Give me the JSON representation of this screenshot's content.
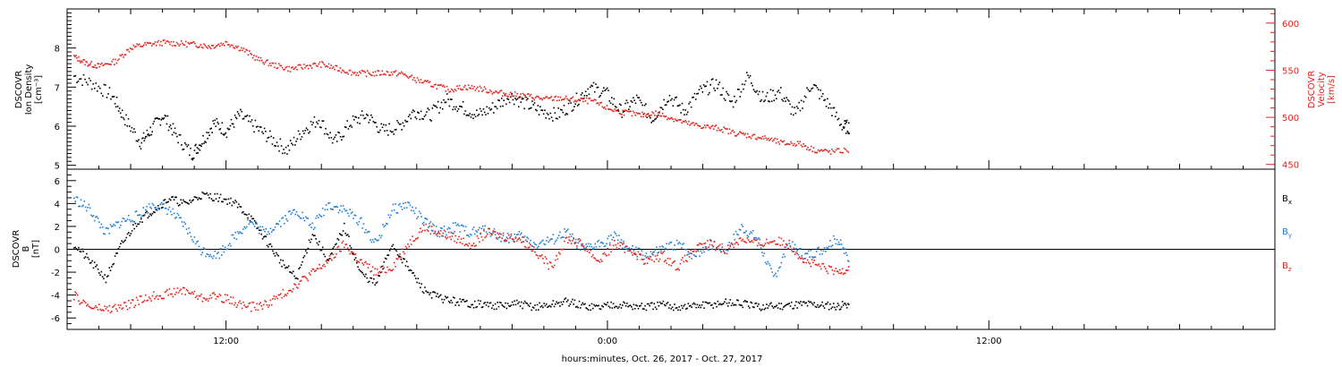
{
  "chart_data": [
    {
      "type": "scatter",
      "title": "",
      "xlabel": "hours:minutes, Oct. 26, 2017 - Oct. 27, 2017",
      "ylabel": "DSCOVR\nIon Density\n[cm⁻³]",
      "y2label": "DSCOVR\nVelocity\n[km/s]",
      "x_tick_labels": [
        "12:00",
        "0:00",
        "12:00"
      ],
      "x_tick_hours": [
        12,
        24,
        36
      ],
      "xlim_hours": [
        7.0,
        45.0
      ],
      "ylim": [
        4.9,
        9.0
      ],
      "yticks": [
        5,
        6,
        7,
        8
      ],
      "y2lim": [
        445,
        615
      ],
      "y2ticks": [
        450,
        500,
        550,
        600
      ],
      "colors": {
        "density": "#000000",
        "velocity": "#e4231c"
      },
      "series": [
        {
          "name": "",
          "axis": "left",
          "color": "#000000",
          "x": [
            7.2,
            7.8,
            8.4,
            8.8,
            9.3,
            9.6,
            10.0,
            10.4,
            10.9,
            11.2,
            11.6,
            12.0,
            12.4,
            12.9,
            13.4,
            13.9,
            14.4,
            14.9,
            15.4,
            15.9,
            16.4,
            16.9,
            17.4,
            17.9,
            18.4,
            18.9,
            19.4,
            19.9,
            20.4,
            20.9,
            21.4,
            21.9,
            22.4,
            22.9,
            23.4,
            23.9,
            24.4,
            24.9,
            25.4,
            25.9,
            26.4,
            26.9,
            27.4,
            27.9,
            28.4,
            28.9,
            29.4,
            29.9,
            30.4,
            30.9,
            31.4,
            31.6
          ],
          "y": [
            7.3,
            7.1,
            6.8,
            6.2,
            5.6,
            5.9,
            6.3,
            5.8,
            5.3,
            5.6,
            6.1,
            5.9,
            6.3,
            6.0,
            5.7,
            5.4,
            5.9,
            6.2,
            5.6,
            6.1,
            6.3,
            5.9,
            6.0,
            6.4,
            6.3,
            6.7,
            6.5,
            6.3,
            6.5,
            6.8,
            6.6,
            6.4,
            6.3,
            6.6,
            7.0,
            6.9,
            6.4,
            6.7,
            6.2,
            6.8,
            6.4,
            6.9,
            7.1,
            6.6,
            7.3,
            6.7,
            6.9,
            6.3,
            7.1,
            6.6,
            6.0,
            6.0
          ]
        },
        {
          "name": "",
          "axis": "right",
          "color": "#e4231c",
          "x": [
            7.2,
            7.6,
            8.0,
            8.5,
            9.0,
            9.5,
            10.0,
            10.5,
            11.0,
            11.5,
            12.0,
            12.5,
            13.0,
            13.5,
            14.0,
            14.5,
            15.0,
            15.5,
            16.0,
            16.5,
            17.0,
            17.5,
            18.0,
            18.5,
            19.0,
            19.5,
            20.0,
            20.5,
            21.0,
            21.5,
            22.0,
            22.5,
            23.0,
            23.5,
            24.0,
            24.5,
            25.0,
            25.5,
            26.0,
            26.5,
            27.0,
            27.5,
            28.0,
            28.5,
            29.0,
            29.5,
            30.0,
            30.5,
            31.0,
            31.6
          ],
          "y": [
            565,
            558,
            555,
            560,
            575,
            578,
            580,
            579,
            578,
            576,
            580,
            573,
            562,
            556,
            552,
            555,
            557,
            552,
            548,
            547,
            548,
            547,
            540,
            535,
            530,
            533,
            531,
            527,
            525,
            523,
            520,
            521,
            519,
            518,
            510,
            506,
            503,
            505,
            500,
            494,
            491,
            489,
            484,
            481,
            478,
            473,
            473,
            466,
            464,
            466
          ]
        }
      ]
    },
    {
      "type": "scatter",
      "title": "",
      "xlabel": "hours:minutes, Oct. 26, 2017 - Oct. 27, 2017",
      "ylabel": "DSCOVR\nB\n[nT]",
      "x_tick_labels": [
        "12:00",
        "0:00",
        "12:00"
      ],
      "x_tick_hours": [
        12,
        24,
        36
      ],
      "xlim_hours": [
        7.0,
        45.0
      ],
      "ylim": [
        -7.0,
        7.0
      ],
      "yticks": [
        -6,
        -4,
        -2,
        0,
        2,
        4,
        6
      ],
      "zero_line": true,
      "legend_position": "right",
      "colors": {
        "bx": "#000000",
        "by": "#1f7fd8",
        "bz": "#e4231c"
      },
      "series": [
        {
          "name": "Bx",
          "color": "#000000",
          "x": [
            7.2,
            7.7,
            8.2,
            8.7,
            9.2,
            9.7,
            10.2,
            10.7,
            11.2,
            11.7,
            12.2,
            12.7,
            13.2,
            13.7,
            14.2,
            14.7,
            15.2,
            15.7,
            16.2,
            16.7,
            17.2,
            17.7,
            18.2,
            18.7,
            19.2,
            19.7,
            20.2,
            20.7,
            21.2,
            21.7,
            22.2,
            22.7,
            23.2,
            23.7,
            24.2,
            24.7,
            25.2,
            25.7,
            26.2,
            26.7,
            27.2,
            27.7,
            28.2,
            28.7,
            29.2,
            29.7,
            30.2,
            30.7,
            31.2,
            31.6
          ],
          "y": [
            0.5,
            -1.0,
            -2.5,
            0.5,
            2.5,
            3.5,
            4.5,
            4.0,
            4.8,
            4.6,
            4.2,
            3.0,
            1.0,
            -1.0,
            -2.5,
            1.5,
            -1.0,
            2.0,
            -2.0,
            -3.0,
            0.5,
            -1.5,
            -3.5,
            -4.2,
            -4.5,
            -4.7,
            -4.8,
            -4.9,
            -4.7,
            -5.0,
            -4.8,
            -4.5,
            -4.9,
            -5.0,
            -4.7,
            -4.9,
            -5.0,
            -4.8,
            -5.0,
            -4.9,
            -4.8,
            -4.6,
            -4.7,
            -5.0,
            -4.9,
            -4.8,
            -4.7,
            -4.8,
            -4.9,
            -4.7
          ]
        },
        {
          "name": "By",
          "color": "#1f7fd8",
          "x": [
            7.2,
            7.7,
            8.2,
            8.7,
            9.2,
            9.7,
            10.2,
            10.7,
            11.2,
            11.7,
            12.2,
            12.7,
            13.2,
            13.7,
            14.2,
            14.7,
            15.2,
            15.7,
            16.2,
            16.7,
            17.2,
            17.7,
            18.2,
            18.7,
            19.2,
            19.7,
            20.2,
            20.7,
            21.2,
            21.7,
            22.2,
            22.7,
            23.2,
            23.7,
            24.2,
            24.7,
            25.2,
            25.7,
            26.2,
            26.7,
            27.2,
            27.7,
            28.2,
            28.7,
            29.2,
            29.7,
            30.2,
            30.7,
            31.2,
            31.6
          ],
          "y": [
            4.5,
            3.5,
            1.5,
            2.5,
            3.0,
            4.0,
            3.5,
            2.0,
            0.0,
            -0.5,
            1.0,
            2.5,
            1.5,
            2.5,
            3.5,
            2.0,
            4.0,
            3.5,
            2.5,
            0.5,
            3.5,
            4.0,
            2.5,
            1.5,
            2.0,
            1.5,
            1.8,
            1.0,
            1.2,
            0.5,
            0.8,
            1.5,
            0.0,
            0.5,
            1.2,
            0.0,
            -0.5,
            0.0,
            0.5,
            -0.5,
            0.5,
            0.0,
            2.0,
            1.0,
            -2.5,
            0.5,
            -0.5,
            0.0,
            1.0,
            -1.0
          ]
        },
        {
          "name": "Bz",
          "color": "#e4231c",
          "x": [
            7.2,
            7.7,
            8.2,
            8.7,
            9.2,
            9.7,
            10.2,
            10.7,
            11.2,
            11.7,
            12.2,
            12.7,
            13.2,
            13.7,
            14.2,
            14.7,
            15.2,
            15.7,
            16.2,
            16.7,
            17.2,
            17.7,
            18.2,
            18.7,
            19.2,
            19.7,
            20.2,
            20.7,
            21.2,
            21.7,
            22.2,
            22.7,
            23.2,
            23.7,
            24.2,
            24.7,
            25.2,
            25.7,
            26.2,
            26.7,
            27.2,
            27.7,
            28.2,
            28.7,
            29.2,
            29.7,
            30.2,
            30.7,
            31.2,
            31.6
          ],
          "y": [
            -4.0,
            -5.0,
            -5.2,
            -5.0,
            -4.5,
            -4.0,
            -3.8,
            -3.5,
            -4.2,
            -4.0,
            -4.5,
            -5.0,
            -4.8,
            -4.0,
            -3.0,
            -2.0,
            -1.0,
            0.5,
            -1.0,
            -2.0,
            -1.5,
            0.5,
            2.0,
            1.5,
            1.0,
            0.5,
            1.5,
            1.2,
            1.0,
            0.0,
            -1.5,
            1.0,
            0.5,
            -1.0,
            0.5,
            0.0,
            -1.0,
            -0.5,
            -1.5,
            0.0,
            0.5,
            0.0,
            1.0,
            0.5,
            0.8,
            0.5,
            -1.0,
            -1.5,
            -2.0,
            -1.5
          ]
        }
      ]
    }
  ]
}
